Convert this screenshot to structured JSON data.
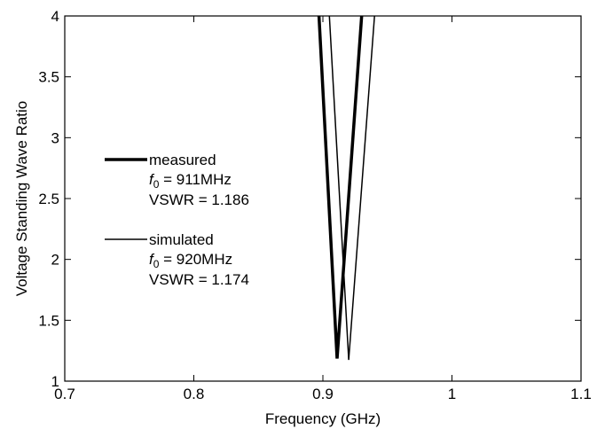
{
  "chart_data": {
    "type": "line",
    "xlabel": "Frequency (GHz)",
    "ylabel": "Voltage Standing Wave Ratio",
    "xlim": [
      0.7,
      1.1
    ],
    "ylim": [
      1,
      4
    ],
    "x_ticks": [
      "0.7",
      "0.8",
      "0.9",
      "1",
      "1.1"
    ],
    "y_ticks": [
      "1",
      "1.5",
      "2",
      "2.5",
      "3",
      "3.5",
      "4"
    ],
    "grid": false,
    "legend_position": "left",
    "series": [
      {
        "name": "measured",
        "f0_label": "= 911MHz",
        "vswr_label": "VSWR = 1.186",
        "line_width": "thick",
        "points": [
          [
            0.897,
            4.0
          ],
          [
            0.911,
            1.186
          ],
          [
            0.93,
            4.0
          ]
        ]
      },
      {
        "name": "simulated",
        "f0_label": "= 920MHz",
        "vswr_label": "VSWR = 1.174",
        "line_width": "thin",
        "points": [
          [
            0.905,
            4.0
          ],
          [
            0.92,
            1.174
          ],
          [
            0.94,
            4.0
          ]
        ]
      }
    ]
  }
}
